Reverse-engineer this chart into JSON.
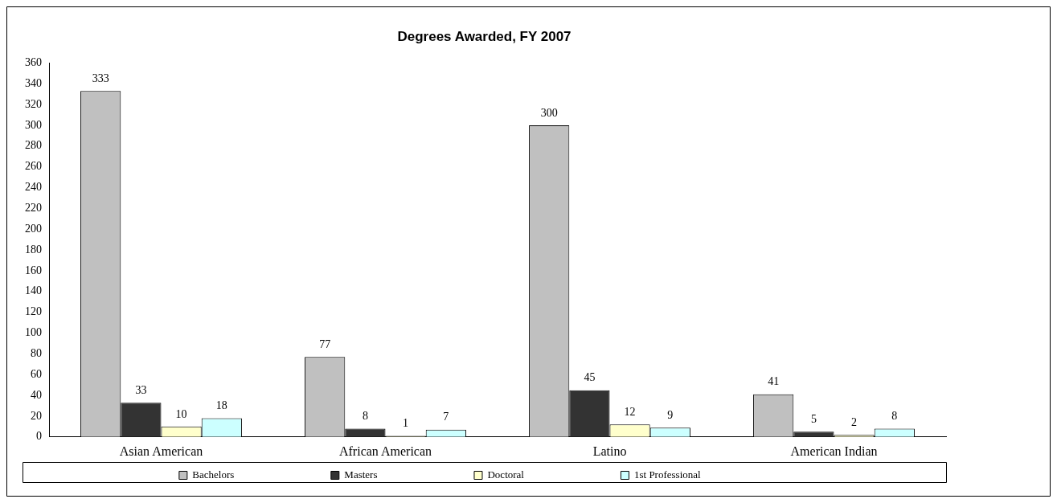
{
  "chart_data": {
    "type": "bar",
    "title": "Degrees Awarded, FY 2007",
    "categories": [
      "Asian American",
      "African American",
      "Latino",
      "American Indian"
    ],
    "series": [
      {
        "name": "Bachelors",
        "color": "#c0c0c0",
        "values": [
          333,
          77,
          300,
          41
        ]
      },
      {
        "name": "Masters",
        "color": "#333333",
        "values": [
          33,
          8,
          45,
          5
        ]
      },
      {
        "name": "Doctoral",
        "color": "#ffffcc",
        "values": [
          10,
          1,
          12,
          2
        ]
      },
      {
        "name": "1st Professional",
        "color": "#ccffff",
        "values": [
          18,
          7,
          9,
          8
        ]
      }
    ],
    "ylim": [
      0,
      360
    ],
    "yticks": [
      0,
      20,
      40,
      60,
      80,
      100,
      120,
      140,
      160,
      180,
      200,
      220,
      240,
      260,
      280,
      300,
      320,
      340,
      360
    ],
    "grid": false,
    "legend": "bottom",
    "data_labels": true
  }
}
